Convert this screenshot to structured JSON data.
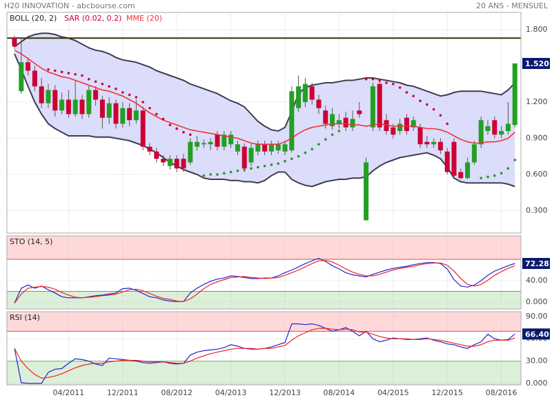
{
  "chart_data": [
    {
      "type": "candlestick",
      "title": "H20 INNOVATION - abcbourse.com",
      "subtitle": "20 ANS - MENSUEL",
      "categories": [
        null,
        null,
        null,
        null,
        null,
        null,
        null,
        null,
        "04/2011",
        null,
        null,
        null,
        null,
        null,
        null,
        null,
        "12/2011",
        null,
        null,
        null,
        null,
        null,
        null,
        null,
        "08/2012",
        null,
        null,
        null,
        null,
        null,
        null,
        null,
        "04/2013",
        null,
        null,
        null,
        null,
        null,
        null,
        null,
        "12/2013",
        null,
        null,
        null,
        null,
        null,
        null,
        null,
        "08/2014",
        null,
        null,
        null,
        null,
        null,
        null,
        null,
        "04/2015",
        null,
        null,
        null,
        null,
        null,
        null,
        null,
        "12/2015",
        null,
        null,
        null,
        null,
        null,
        null,
        null,
        "08/2016",
        null,
        null
      ],
      "open": [
        1.73,
        1.29,
        1.53,
        1.46,
        1.33,
        1.19,
        1.3,
        1.13,
        1.22,
        1.1,
        1.22,
        1.1,
        1.3,
        1.22,
        1.07,
        1.19,
        1.02,
        1.15,
        1.05,
        1.13,
        0.83,
        0.79,
        0.73,
        0.67,
        0.73,
        0.73,
        0.7,
        0.83,
        0.85,
        0.85,
        0.93,
        0.83,
        0.85,
        0.79,
        0.83,
        0.7,
        0.79,
        0.85,
        0.79,
        0.8,
        0.79,
        0.8,
        1.15,
        1.2,
        1.33,
        1.22,
        1.13,
        1.0,
        1.02,
        1.07,
        0.99,
        1.13,
        0.22,
        0.99,
        1.35,
        1.05,
        0.99,
        0.96,
        1.07,
        0.99,
        0.99,
        0.87,
        0.85,
        0.87,
        0.79,
        0.87,
        0.62,
        0.57,
        0.7,
        0.85,
        0.96,
        1.05,
        0.93,
        0.96,
        1.01
      ],
      "high": [
        1.75,
        1.73,
        1.57,
        1.5,
        1.4,
        1.35,
        1.34,
        1.28,
        1.3,
        1.38,
        1.26,
        1.34,
        1.33,
        1.25,
        1.24,
        1.22,
        1.2,
        1.19,
        1.22,
        1.16,
        0.86,
        0.82,
        0.76,
        0.76,
        0.76,
        0.77,
        0.9,
        0.92,
        0.89,
        0.9,
        0.96,
        0.96,
        0.96,
        0.88,
        0.86,
        0.85,
        0.88,
        0.88,
        0.88,
        0.88,
        0.88,
        1.33,
        1.42,
        1.4,
        1.36,
        1.26,
        1.17,
        1.15,
        1.1,
        1.12,
        1.13,
        1.2,
        0.74,
        1.36,
        1.38,
        1.1,
        1.02,
        1.06,
        1.1,
        1.08,
        1.02,
        0.92,
        0.9,
        0.9,
        0.82,
        0.9,
        0.65,
        0.74,
        0.88,
        1.08,
        1.05,
        1.08,
        1.0,
        1.2,
        1.52
      ],
      "low": [
        1.64,
        1.27,
        1.42,
        1.29,
        1.15,
        1.15,
        1.08,
        1.1,
        1.07,
        1.08,
        1.06,
        1.07,
        1.17,
        0.98,
        1.02,
        0.98,
        0.99,
        1.0,
        1.02,
        0.8,
        0.76,
        0.7,
        0.67,
        0.64,
        0.62,
        0.62,
        0.68,
        0.8,
        0.82,
        0.8,
        0.8,
        0.8,
        0.82,
        0.76,
        0.62,
        0.67,
        0.76,
        0.76,
        0.76,
        0.77,
        0.76,
        0.78,
        1.12,
        1.16,
        1.18,
        1.1,
        0.98,
        0.97,
        0.98,
        0.96,
        0.96,
        1.07,
        0.22,
        0.96,
        0.96,
        0.93,
        0.9,
        0.93,
        0.93,
        0.96,
        0.82,
        0.82,
        0.82,
        0.77,
        0.6,
        0.57,
        0.56,
        0.56,
        0.68,
        0.82,
        0.93,
        0.9,
        0.9,
        0.93,
        0.99
      ],
      "close": [
        1.66,
        1.53,
        1.46,
        1.33,
        1.19,
        1.3,
        1.13,
        1.22,
        1.1,
        1.22,
        1.1,
        1.3,
        1.22,
        1.07,
        1.19,
        1.02,
        1.15,
        1.05,
        1.13,
        0.83,
        0.79,
        0.73,
        0.7,
        0.73,
        0.65,
        0.65,
        0.87,
        0.87,
        0.86,
        0.87,
        0.83,
        0.93,
        0.93,
        0.85,
        0.65,
        0.82,
        0.85,
        0.79,
        0.85,
        0.85,
        0.85,
        1.29,
        1.33,
        1.35,
        1.22,
        1.15,
        1.02,
        1.1,
        1.05,
        0.99,
        1.06,
        1.1,
        0.7,
        1.33,
        0.99,
        0.96,
        0.93,
        1.02,
        0.96,
        1.05,
        0.85,
        0.85,
        0.87,
        0.8,
        0.62,
        0.59,
        0.57,
        0.7,
        0.85,
        1.05,
        1.0,
        0.93,
        0.96,
        1.02,
        1.52
      ],
      "up_color": "#22a022",
      "down_color": "#cc0033",
      "last_label": "1.520",
      "bollinger": {
        "name": "BOLL (20, 2)",
        "color": "#3c3c50",
        "fill": "#d6d6fa",
        "upper": [
          1.66,
          1.7,
          1.74,
          1.76,
          1.77,
          1.77,
          1.76,
          1.74,
          1.73,
          1.71,
          1.68,
          1.65,
          1.63,
          1.62,
          1.6,
          1.57,
          1.55,
          1.54,
          1.53,
          1.51,
          1.49,
          1.46,
          1.44,
          1.42,
          1.4,
          1.38,
          1.35,
          1.33,
          1.31,
          1.29,
          1.27,
          1.24,
          1.21,
          1.19,
          1.16,
          1.1,
          1.04,
          1.0,
          0.97,
          0.96,
          0.99,
          1.12,
          1.27,
          1.32,
          1.34,
          1.35,
          1.36,
          1.36,
          1.37,
          1.38,
          1.38,
          1.39,
          1.4,
          1.4,
          1.39,
          1.38,
          1.37,
          1.36,
          1.34,
          1.33,
          1.31,
          1.29,
          1.27,
          1.25,
          1.26,
          1.28,
          1.29,
          1.29,
          1.29,
          1.29,
          1.28,
          1.27,
          1.26,
          1.3,
          1.36
        ],
        "lower": [
          1.6,
          1.47,
          1.33,
          1.2,
          1.1,
          1.02,
          0.98,
          0.95,
          0.92,
          0.92,
          0.92,
          0.92,
          0.91,
          0.91,
          0.91,
          0.9,
          0.89,
          0.88,
          0.86,
          0.84,
          0.81,
          0.78,
          0.74,
          0.7,
          0.67,
          0.64,
          0.62,
          0.6,
          0.57,
          0.56,
          0.56,
          0.56,
          0.55,
          0.55,
          0.54,
          0.54,
          0.53,
          0.55,
          0.59,
          0.62,
          0.62,
          0.56,
          0.53,
          0.51,
          0.5,
          0.52,
          0.54,
          0.55,
          0.56,
          0.56,
          0.57,
          0.57,
          0.58,
          0.63,
          0.67,
          0.7,
          0.72,
          0.74,
          0.75,
          0.76,
          0.77,
          0.78,
          0.76,
          0.73,
          0.66,
          0.57,
          0.54,
          0.53,
          0.53,
          0.53,
          0.53,
          0.53,
          0.53,
          0.52,
          0.5
        ]
      },
      "sar": {
        "name": "SAR (0.02, 0.2)",
        "color": "#cc0033",
        "values": [
          null,
          null,
          null,
          null,
          null,
          1.47,
          1.46,
          1.45,
          1.44,
          1.43,
          1.42,
          1.39,
          1.37,
          1.35,
          1.33,
          1.31,
          1.28,
          1.26,
          1.24,
          1.2,
          1.15,
          1.1,
          1.06,
          1.01,
          0.98,
          0.95,
          0.93,
          null,
          0.59,
          0.6,
          0.6,
          0.61,
          0.62,
          0.63,
          0.64,
          0.65,
          0.66,
          0.67,
          0.68,
          0.69,
          0.71,
          0.73,
          0.75,
          0.78,
          0.81,
          0.85,
          0.89,
          0.93,
          0.96,
          1.0,
          1.05,
          null,
          1.39,
          1.39,
          1.38,
          1.36,
          1.35,
          1.32,
          1.28,
          1.25,
          1.21,
          1.18,
          1.14,
          1.09,
          1.02,
          null,
          null,
          null,
          null,
          0.57,
          0.58,
          0.59,
          0.61,
          0.65,
          0.72
        ]
      },
      "sar_below_color": "#229922",
      "mme": {
        "name": "MME (20)",
        "color": "#ee3333",
        "values": [
          1.63,
          1.6,
          1.56,
          1.52,
          1.48,
          1.45,
          1.43,
          1.41,
          1.4,
          1.38,
          1.36,
          1.34,
          1.32,
          1.3,
          1.29,
          1.27,
          1.25,
          1.22,
          1.19,
          1.15,
          1.11,
          1.08,
          1.05,
          1.03,
          1.01,
          0.99,
          0.97,
          0.96,
          0.95,
          0.94,
          0.93,
          0.92,
          0.91,
          0.9,
          0.88,
          0.86,
          0.85,
          0.85,
          0.85,
          0.85,
          0.87,
          0.9,
          0.94,
          0.97,
          0.99,
          1.0,
          1.01,
          1.02,
          1.02,
          1.02,
          1.01,
          1.01,
          1.0,
          1.01,
          1.02,
          1.01,
          1.0,
          1.0,
          1.0,
          1.0,
          0.99,
          0.98,
          0.98,
          0.97,
          0.95,
          0.92,
          0.89,
          0.87,
          0.86,
          0.86,
          0.87,
          0.87,
          0.88,
          0.9,
          0.95
        ]
      },
      "hline": 1.73,
      "hline_color": "#3a3000",
      "ylim": [
        0.114,
        1.943
      ],
      "yticks": [
        {
          "value": 1.8,
          "label": "1.800"
        },
        {
          "value": 1.2,
          "label": "1.200"
        },
        {
          "value": 0.9,
          "label": "0.900"
        },
        {
          "value": 0.6,
          "label": "0.600"
        },
        {
          "value": 0.3,
          "label": "0.300"
        }
      ],
      "grid": true
    },
    {
      "type": "line",
      "title": "STO (14, 5)",
      "series": [
        {
          "color": "#2222cc",
          "values": [
            -2,
            26,
            32,
            26,
            30,
            23,
            17,
            10,
            8,
            8,
            8,
            10,
            12,
            13,
            15,
            17,
            25,
            26,
            22,
            16,
            10,
            8,
            4,
            2,
            1,
            1,
            17,
            26,
            33,
            39,
            43,
            45,
            49,
            48,
            46,
            44,
            44,
            45,
            45,
            49,
            55,
            60,
            66,
            72,
            77,
            82,
            76,
            68,
            62,
            55,
            51,
            49,
            47,
            52,
            56,
            60,
            63,
            65,
            67,
            70,
            72,
            74,
            74,
            72,
            62,
            42,
            30,
            28,
            32,
            40,
            50,
            58,
            63,
            68,
            72.28
          ]
        },
        {
          "color": "#ee2222",
          "values": [
            -2,
            15,
            26,
            28,
            29,
            28,
            24,
            18,
            13,
            9,
            8,
            9,
            10,
            12,
            13,
            15,
            19,
            23,
            24,
            21,
            16,
            11,
            7,
            5,
            2,
            1,
            6,
            15,
            25,
            33,
            38,
            42,
            46,
            47,
            48,
            46,
            45,
            44,
            45,
            46,
            50,
            55,
            60,
            66,
            72,
            77,
            78,
            75,
            69,
            62,
            56,
            52,
            49,
            49,
            52,
            56,
            60,
            63,
            65,
            67,
            70,
            72,
            73,
            73,
            69,
            58,
            44,
            33,
            30,
            33,
            41,
            50,
            57,
            63,
            68
          ]
        }
      ],
      "levels": [
        20,
        80
      ],
      "upper_zone_color": "#ffd9d9",
      "lower_zone_color": "#dcefd8",
      "ylim": [
        -12.9,
        123.9
      ],
      "yticks": [
        {
          "value": 40,
          "label": "40.00"
        },
        {
          "value": 0,
          "label": "0.000"
        }
      ],
      "grid": true
    },
    {
      "type": "line",
      "title": "RSI (14)",
      "series": [
        {
          "color": "#2222cc",
          "last_label": "66.40",
          "values": [
            47,
            1,
            0,
            0,
            0,
            15,
            19,
            20,
            27,
            33,
            32,
            30,
            26,
            24,
            34,
            33,
            32,
            31,
            30,
            28,
            27,
            28,
            29,
            27,
            26,
            27,
            38,
            42,
            44,
            45,
            46,
            48,
            52,
            50,
            47,
            46,
            46,
            47,
            49,
            52,
            55,
            80,
            80,
            79,
            80,
            78,
            74,
            70,
            72,
            75,
            70,
            64,
            70,
            60,
            56,
            58,
            61,
            60,
            59,
            59,
            60,
            61,
            58,
            56,
            53,
            52,
            49,
            47,
            52,
            56,
            66,
            60,
            58,
            59,
            66.4
          ]
        },
        {
          "color": "#ee2222",
          "values": [
            47,
            30,
            20,
            12,
            7,
            8,
            10,
            13,
            17,
            21,
            24,
            26,
            27,
            27,
            29,
            30,
            31,
            31,
            31,
            30,
            29,
            29,
            29,
            28,
            27,
            27,
            30,
            34,
            37,
            40,
            42,
            44,
            46,
            47,
            47,
            47,
            46,
            47,
            47,
            49,
            51,
            58,
            64,
            68,
            72,
            74,
            74,
            73,
            72,
            73,
            72,
            69,
            69,
            66,
            63,
            61,
            60,
            60,
            60,
            59,
            59,
            60,
            59,
            58,
            56,
            54,
            52,
            50,
            50,
            52,
            56,
            58,
            58,
            58,
            61
          ]
        }
      ],
      "levels": [
        30,
        70
      ],
      "upper_zone_color": "#ffd9d9",
      "lower_zone_color": "#dcefd8",
      "ylim": [
        -1.9,
        96.3
      ],
      "yticks": [
        {
          "value": 90,
          "label": "90.00"
        },
        {
          "value": 60,
          "label": "60.00"
        },
        {
          "value": 30,
          "label": "30.00"
        },
        {
          "value": 0,
          "label": "0.000"
        }
      ],
      "grid": true
    }
  ]
}
